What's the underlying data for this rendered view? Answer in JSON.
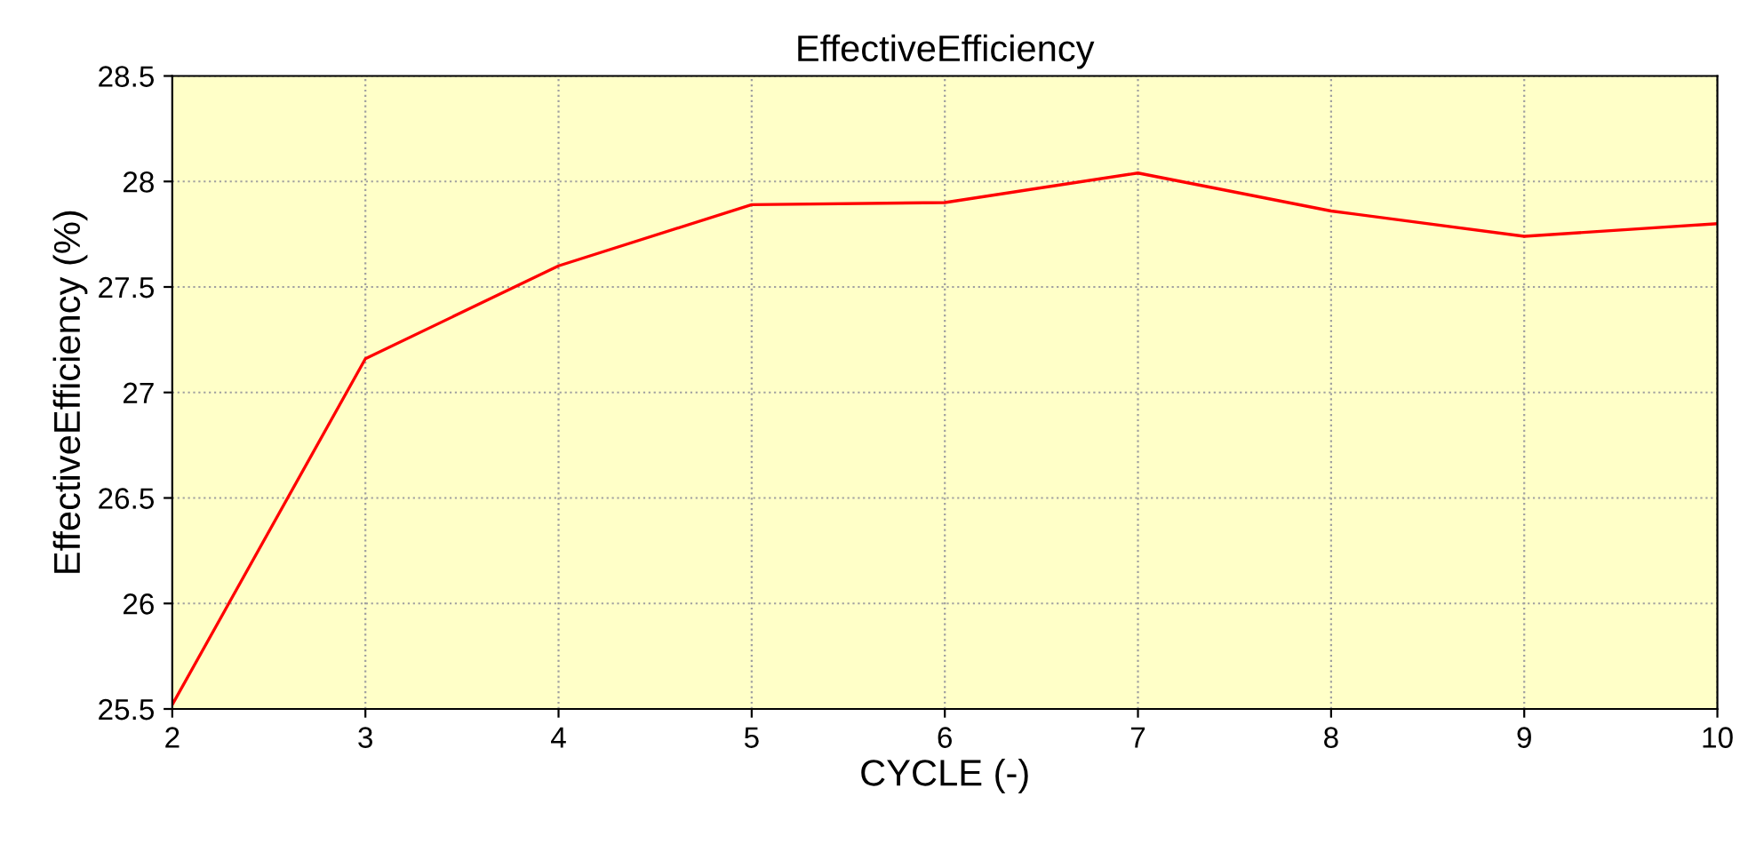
{
  "chart_data": {
    "type": "line",
    "title": "EffectiveEfficiency",
    "xlabel": "CYCLE (-)",
    "ylabel": "EffectiveEfficiency (%)",
    "x": [
      2,
      3,
      4,
      5,
      6,
      7,
      8,
      9,
      10
    ],
    "series": [
      {
        "color": "#ff0000",
        "values": [
          25.52,
          27.16,
          27.6,
          27.89,
          27.9,
          28.04,
          27.86,
          27.74,
          27.8
        ]
      }
    ],
    "xlim": [
      2,
      10
    ],
    "xticks": [
      2,
      3,
      4,
      5,
      6,
      7,
      8,
      9,
      10
    ],
    "ylim": [
      25.5,
      28.5
    ],
    "yticks": [
      25.5,
      26,
      26.5,
      27,
      27.5,
      28,
      28.5
    ],
    "grid": true,
    "line_style": "solid",
    "marker": "none"
  }
}
